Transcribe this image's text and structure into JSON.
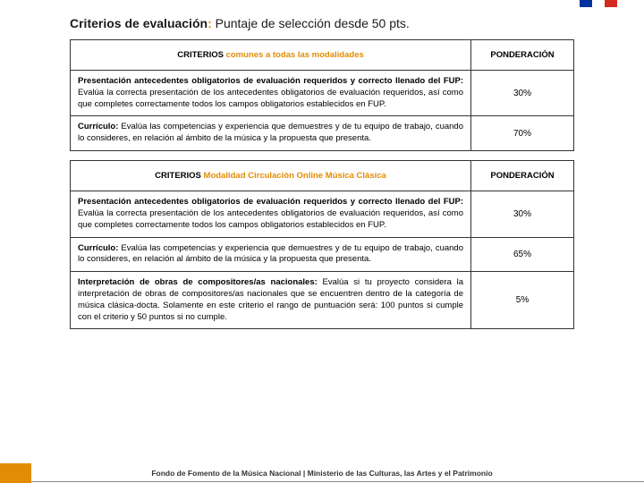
{
  "flag_colors": [
    "#0033a0",
    "#ffffff",
    "#d52b1e"
  ],
  "title": {
    "prefix": "Criterios de evaluación",
    "colon": ":",
    "suffix": "Puntaje de selección desde 50 pts."
  },
  "tables": [
    {
      "header_black": "CRITERIOS ",
      "header_orange": "comunes a todas las modalidades",
      "pond_header": "PONDERACIÓN",
      "rows": [
        {
          "lead": "Presentación antecedentes obligatorios de evaluación requeridos y correcto llenado del FUP:",
          "body": " Evalúa la correcta presentación de los antecedentes obligatorios de evaluación requeridos, así como que completes correctamente todos los campos obligatorios establecidos en FUP.",
          "pond": "30%"
        },
        {
          "lead": "Currículo:",
          "body": " Evalúa las competencias y experiencia que demuestres y de tu equipo de trabajo, cuando lo consideres, en relación al ámbito de la música y la propuesta que presenta.",
          "pond": "70%"
        }
      ]
    },
    {
      "header_black": "CRITERIOS ",
      "header_orange": "Modalidad Circulación Online Música Clásica",
      "pond_header": "PONDERACIÓN",
      "rows": [
        {
          "lead": "Presentación antecedentes obligatorios de evaluación requeridos y correcto llenado del FUP:",
          "body": " Evalúa la correcta presentación de los antecedentes obligatorios de evaluación requeridos, así como que completes correctamente todos los campos obligatorios establecidos en FUP.",
          "pond": "30%"
        },
        {
          "lead": "Currículo:",
          "body": " Evalúa las competencias y experiencia que demuestres y de tu equipo de trabajo, cuando lo consideres, en relación al ámbito de la música y la propuesta que presenta.",
          "pond": "65%"
        },
        {
          "lead": "Interpretación de obras de compositores/as nacionales:",
          "body": " Evalúa si tu proyecto considera la interpretación de obras de compositores/as nacionales que se encuentren dentro de la categoría de música clásica-docta. Solamente en este criterio el rango de puntuación será: 100 puntos si cumple con el criterio y 50 puntos si no cumple.",
          "pond": "5%"
        }
      ]
    }
  ],
  "footer": "Fondo de Fomento de la Música Nacional | Ministerio de las Culturas, las Artes y el Patrimonio"
}
